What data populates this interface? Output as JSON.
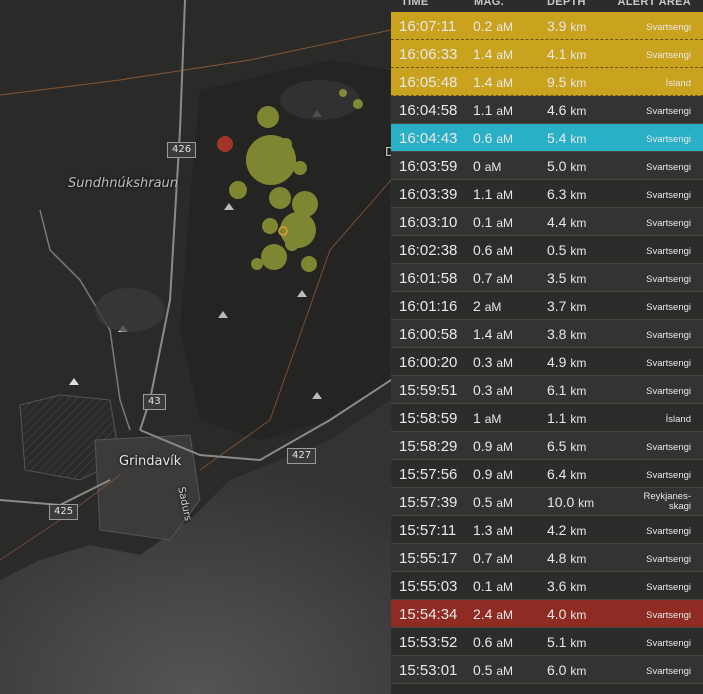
{
  "map": {
    "places": {
      "sundhnukshraun": "Sundhnúkshraun",
      "grindavik": "Grindavík",
      "sadurs": "Sadurs"
    },
    "edge_label": "D",
    "roads": {
      "r426": "426",
      "r43": "43",
      "r427": "427",
      "r425": "425"
    },
    "colors": {
      "quake_yellow": "#c8d640",
      "quake_red": "#c0392b",
      "boundary": "#b06a3a"
    }
  },
  "table": {
    "headers": {
      "time": "TIME",
      "mag": "MAG.",
      "depth": "DEPTH",
      "area": "ALERT AREA"
    },
    "mag_unit": "aM",
    "depth_unit": "km",
    "rows": [
      {
        "time": "16:07:11",
        "mag": "0.2",
        "depth": "3.9",
        "area": "Svartsengi",
        "highlight": "yellow"
      },
      {
        "time": "16:06:33",
        "mag": "1.4",
        "depth": "4.1",
        "area": "Svartsengi",
        "highlight": "yellow"
      },
      {
        "time": "16:05:48",
        "mag": "1.4",
        "depth": "9.5",
        "area": "Ísland",
        "highlight": "yellow"
      },
      {
        "time": "16:04:58",
        "mag": "1.1",
        "depth": "4.6",
        "area": "Svartsengi",
        "highlight": ""
      },
      {
        "time": "16:04:43",
        "mag": "0.6",
        "depth": "5.4",
        "area": "Svartsengi",
        "highlight": "teal"
      },
      {
        "time": "16:03:59",
        "mag": "0",
        "depth": "5.0",
        "area": "Svartsengi",
        "highlight": ""
      },
      {
        "time": "16:03:39",
        "mag": "1.1",
        "depth": "6.3",
        "area": "Svartsengi",
        "highlight": ""
      },
      {
        "time": "16:03:10",
        "mag": "0.1",
        "depth": "4.4",
        "area": "Svartsengi",
        "highlight": ""
      },
      {
        "time": "16:02:38",
        "mag": "0.6",
        "depth": "0.5",
        "area": "Svartsengi",
        "highlight": ""
      },
      {
        "time": "16:01:58",
        "mag": "0.7",
        "depth": "3.5",
        "area": "Svartsengi",
        "highlight": ""
      },
      {
        "time": "16:01:16",
        "mag": "2",
        "depth": "3.7",
        "area": "Svartsengi",
        "highlight": ""
      },
      {
        "time": "16:00:58",
        "mag": "1.4",
        "depth": "3.8",
        "area": "Svartsengi",
        "highlight": ""
      },
      {
        "time": "16:00:20",
        "mag": "0.3",
        "depth": "4.9",
        "area": "Svartsengi",
        "highlight": ""
      },
      {
        "time": "15:59:51",
        "mag": "0.3",
        "depth": "6.1",
        "area": "Svartsengi",
        "highlight": ""
      },
      {
        "time": "15:58:59",
        "mag": "1",
        "depth": "1.1",
        "area": "Ísland",
        "highlight": ""
      },
      {
        "time": "15:58:29",
        "mag": "0.9",
        "depth": "6.5",
        "area": "Svartsengi",
        "highlight": ""
      },
      {
        "time": "15:57:56",
        "mag": "0.9",
        "depth": "6.4",
        "area": "Svartsengi",
        "highlight": ""
      },
      {
        "time": "15:57:39",
        "mag": "0.5",
        "depth": "10.0",
        "area": "Reykjanes-skagi",
        "highlight": ""
      },
      {
        "time": "15:57:11",
        "mag": "1.3",
        "depth": "4.2",
        "area": "Svartsengi",
        "highlight": ""
      },
      {
        "time": "15:55:17",
        "mag": "0.7",
        "depth": "4.8",
        "area": "Svartsengi",
        "highlight": ""
      },
      {
        "time": "15:55:03",
        "mag": "0.1",
        "depth": "3.6",
        "area": "Svartsengi",
        "highlight": ""
      },
      {
        "time": "15:54:34",
        "mag": "2.4",
        "depth": "4.0",
        "area": "Svartsengi",
        "highlight": "red"
      },
      {
        "time": "15:53:52",
        "mag": "0.6",
        "depth": "5.1",
        "area": "Svartsengi",
        "highlight": ""
      },
      {
        "time": "15:53:01",
        "mag": "0.5",
        "depth": "6.0",
        "area": "Svartsengi",
        "highlight": ""
      }
    ]
  }
}
